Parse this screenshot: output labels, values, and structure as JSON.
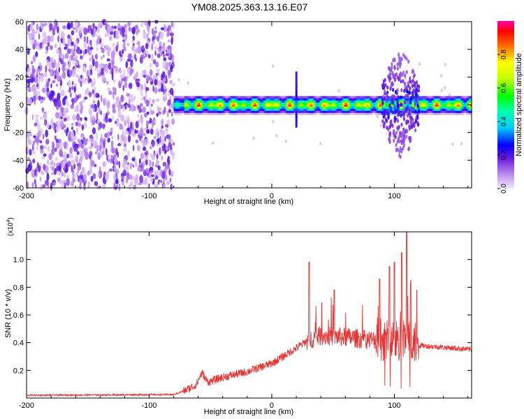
{
  "title": "YM08.2025.363.13.16.E07",
  "colorbar": {
    "label": "Normalized spectral amplitude",
    "ticks": [
      "0.0",
      "0.2",
      "0.4",
      "0.6",
      "0.8"
    ],
    "tick_values": [
      0.0,
      0.2,
      0.4,
      0.6,
      0.8
    ],
    "range": [
      0,
      1
    ]
  },
  "chart_data": [
    {
      "type": "heatmap",
      "name": "spectrogram",
      "xlabel": "Height of straight line (km)",
      "ylabel": "Frequency (Hz)",
      "xlim": [
        -200,
        163
      ],
      "ylim": [
        -60,
        60
      ],
      "xticks": [
        -200,
        -100,
        0,
        100
      ],
      "xtick_labels": [
        "-200",
        "-100",
        "0",
        "100"
      ],
      "yticks": [
        60,
        40,
        20,
        0,
        -20,
        -40,
        -60
      ],
      "ytick_labels": [
        "60",
        "40",
        "20",
        "0",
        "-20",
        "-40",
        "-60"
      ],
      "regions": [
        {
          "x_range": [
            -200,
            -80
          ],
          "description": "broadband noise, all frequencies",
          "amplitude": 0.15
        },
        {
          "x_range": [
            -80,
            163
          ],
          "description": "narrow band centered at 0 Hz",
          "center_hz": 0,
          "half_width_hz": 4,
          "peak_amplitude": 1.0
        },
        {
          "x": 20,
          "description": "vertical spike",
          "freq_range": [
            -15,
            25
          ]
        },
        {
          "x_range": [
            90,
            120
          ],
          "description": "broadened band",
          "freq_range": [
            -38,
            38
          ]
        }
      ]
    },
    {
      "type": "line",
      "name": "snr",
      "xlabel": "Height of straight line (km)",
      "ylabel": "SNR (10 * v/v)",
      "y_multiplier_label": "(x10",
      "y_multiplier_exp": "4",
      "y_multiplier_close": ")",
      "xlim": [
        -200,
        163
      ],
      "ylim": [
        0,
        1.2
      ],
      "xticks": [
        -200,
        -100,
        0,
        100
      ],
      "xtick_labels": [
        "-200",
        "-100",
        "0",
        "100"
      ],
      "yticks": [
        0.2,
        0.4,
        0.6,
        0.8,
        1.0
      ],
      "ytick_labels": [
        "0.2",
        "0.4",
        "0.6",
        "0.8",
        "1.0"
      ],
      "color": "#e83333",
      "x": [
        -200,
        -100,
        -80,
        -70,
        -60,
        -55,
        -50,
        -40,
        -30,
        -20,
        -10,
        0,
        10,
        20,
        28,
        30,
        32,
        40,
        50,
        60,
        70,
        80,
        90,
        95,
        100,
        105,
        110,
        115,
        120,
        130,
        140,
        150,
        163
      ],
      "y": [
        0.02,
        0.02,
        0.03,
        0.05,
        0.13,
        0.2,
        0.12,
        0.17,
        0.22,
        0.18,
        0.25,
        0.29,
        0.32,
        0.4,
        0.42,
        0.98,
        0.45,
        0.52,
        0.48,
        0.52,
        0.4,
        0.42,
        0.5,
        0.35,
        0.95,
        0.4,
        1.1,
        0.5,
        0.38,
        0.37,
        0.36,
        0.36,
        0.35
      ],
      "peaks": [
        {
          "x": 30.5,
          "y": 0.98
        },
        {
          "x": 51,
          "y": 0.78
        },
        {
          "x": 88,
          "y": 0.86
        },
        {
          "x": 96,
          "y": 0.95
        },
        {
          "x": 100,
          "y": 0.98
        },
        {
          "x": 106,
          "y": 1.05
        },
        {
          "x": 110,
          "y": 1.2
        },
        {
          "x": 113,
          "y": 0.83
        }
      ]
    }
  ]
}
